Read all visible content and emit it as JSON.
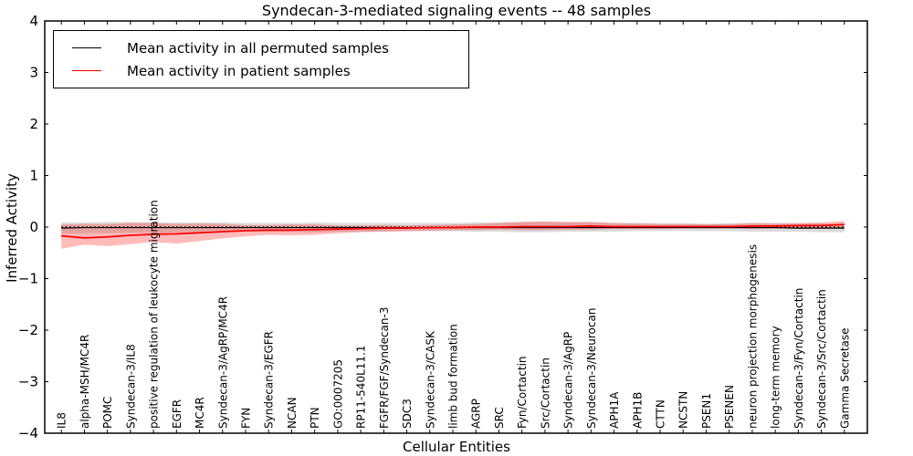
{
  "figure": {
    "title": "Syndecan-3-mediated signaling events -- 48 samples",
    "xlabel": "Cellular Entities",
    "ylabel": "Inferred Activity"
  },
  "legend": {
    "entries": [
      {
        "label": "Mean activity in all permuted samples",
        "color": "#000000"
      },
      {
        "label": "Mean activity in patient samples",
        "color": "#ff0000"
      }
    ]
  },
  "chart_data": {
    "type": "line",
    "title": "Syndecan-3-mediated signaling events -- 48 samples",
    "xlabel": "Cellular Entities",
    "ylabel": "Inferred Activity",
    "ylim": [
      -4,
      4
    ],
    "yticks": [
      -4,
      -3,
      -2,
      -1,
      0,
      1,
      2,
      3,
      4
    ],
    "grid": false,
    "legend_position": "upper left",
    "categories": [
      "IL8",
      "alpha-MSH/MC4R",
      "POMC",
      "Syndecan-3/IL8",
      "positive regulation of leukocyte migration",
      "EGFR",
      "MC4R",
      "Syndecan-3/AgRP/MC4R",
      "FYN",
      "Syndecan-3/EGFR",
      "NCAN",
      "PTN",
      "GO:0007205",
      "RP11-540L11.1",
      "FGFR/FGF/Syndecan-3",
      "SDC3",
      "Syndecan-3/CASK",
      "limb bud formation",
      "AGRP",
      "SRC",
      "Fyn/Cortactin",
      "Src/Cortactin",
      "Syndecan-3/AgRP",
      "Syndecan-3/Neurocan",
      "APH1A",
      "APH1B",
      "CTTN",
      "NCSTN",
      "PSEN1",
      "PSENEN",
      "neuron projection morphogenesis",
      "long-term memory",
      "Syndecan-3/Fyn/Cortactin",
      "Syndecan-3/Src/Cortactin",
      "Gamma Secretase"
    ],
    "series": [
      {
        "name": "Mean activity in all permuted samples",
        "color": "#000000",
        "values": [
          -0.02,
          -0.01,
          -0.01,
          -0.01,
          -0.01,
          -0.01,
          -0.01,
          -0.01,
          -0.01,
          -0.01,
          -0.01,
          -0.01,
          -0.01,
          -0.01,
          -0.01,
          -0.01,
          -0.01,
          -0.01,
          -0.01,
          -0.01,
          -0.01,
          -0.01,
          -0.01,
          -0.01,
          -0.01,
          -0.01,
          -0.01,
          -0.01,
          -0.01,
          -0.01,
          -0.01,
          -0.01,
          -0.02,
          -0.02,
          -0.02
        ]
      },
      {
        "name": "Mean activity in patient samples",
        "color": "#ff0000",
        "values": [
          -0.17,
          -0.21,
          -0.19,
          -0.16,
          -0.14,
          -0.13,
          -0.11,
          -0.09,
          -0.07,
          -0.06,
          -0.06,
          -0.05,
          -0.04,
          -0.03,
          -0.02,
          -0.02,
          -0.01,
          -0.01,
          0.0,
          0.0,
          0.01,
          0.01,
          0.01,
          0.02,
          0.01,
          0.01,
          0.01,
          0.01,
          0.01,
          0.01,
          0.02,
          0.02,
          0.03,
          0.03,
          0.05
        ]
      }
    ],
    "bands": [
      {
        "name": "permuted-sample-range",
        "fill": "rgba(130,130,130,0.28)",
        "upper": [
          0.09,
          0.09,
          0.1,
          0.1,
          0.09,
          0.09,
          0.09,
          0.09,
          0.08,
          0.08,
          0.08,
          0.09,
          0.08,
          0.08,
          0.08,
          0.08,
          0.08,
          0.08,
          0.09,
          0.09,
          0.1,
          0.1,
          0.09,
          0.09,
          0.08,
          0.08,
          0.08,
          0.08,
          0.07,
          0.07,
          0.08,
          0.08,
          0.07,
          0.07,
          0.07
        ],
        "lower": [
          -0.13,
          -0.12,
          -0.12,
          -0.11,
          -0.11,
          -0.1,
          -0.1,
          -0.1,
          -0.09,
          -0.09,
          -0.09,
          -0.1,
          -0.09,
          -0.09,
          -0.08,
          -0.08,
          -0.08,
          -0.08,
          -0.09,
          -0.09,
          -0.1,
          -0.1,
          -0.09,
          -0.09,
          -0.09,
          -0.08,
          -0.08,
          -0.08,
          -0.08,
          -0.08,
          -0.09,
          -0.09,
          -0.09,
          -0.1,
          -0.1
        ]
      },
      {
        "name": "patient-sample-range",
        "fill": "rgba(255,0,0,0.27)",
        "upper": [
          0.05,
          0.06,
          0.06,
          0.08,
          0.08,
          0.06,
          0.07,
          0.06,
          0.04,
          0.04,
          0.05,
          0.05,
          0.03,
          0.03,
          0.04,
          0.03,
          0.04,
          0.05,
          0.06,
          0.08,
          0.1,
          0.11,
          0.1,
          0.1,
          0.08,
          0.07,
          0.06,
          0.06,
          0.05,
          0.06,
          0.08,
          0.07,
          0.08,
          0.09,
          0.12
        ],
        "lower": [
          -0.42,
          -0.34,
          -0.37,
          -0.33,
          -0.29,
          -0.32,
          -0.27,
          -0.22,
          -0.18,
          -0.15,
          -0.16,
          -0.15,
          -0.12,
          -0.1,
          -0.09,
          -0.08,
          -0.07,
          -0.06,
          -0.06,
          -0.05,
          -0.06,
          -0.06,
          -0.05,
          -0.05,
          -0.04,
          -0.04,
          -0.04,
          -0.03,
          -0.03,
          -0.03,
          -0.04,
          -0.03,
          -0.03,
          -0.03,
          -0.02
        ]
      }
    ],
    "zero_line": {
      "y": 0,
      "style": "dotted",
      "color": "#000000"
    }
  }
}
